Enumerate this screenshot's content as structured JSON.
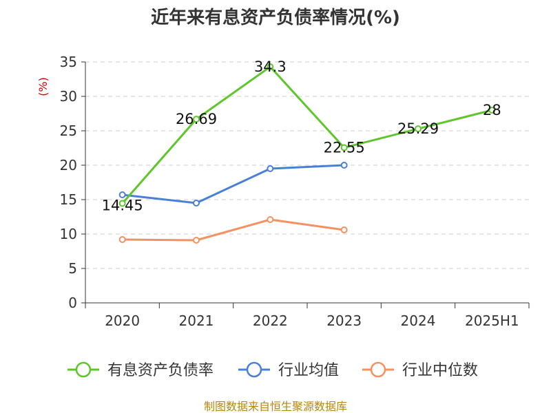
{
  "chart_data": {
    "type": "line",
    "title": "近年来有息资产负债率情况(%)",
    "ylabel": "(%)",
    "xlabel": "",
    "categories": [
      "2020",
      "2021",
      "2022",
      "2023",
      "2024",
      "2025H1"
    ],
    "ylim": [
      0,
      35
    ],
    "yticks": [
      0,
      5,
      10,
      15,
      20,
      25,
      30,
      35
    ],
    "grid": true,
    "legend_position": "bottom",
    "series": [
      {
        "name": "有息资产负债率",
        "color": "#5ec62b",
        "values": [
          14.45,
          26.69,
          34.3,
          22.55,
          25.29,
          28
        ],
        "labels": [
          "14.45",
          "26.69",
          "34.3",
          "22.55",
          "25.29",
          "28"
        ]
      },
      {
        "name": "行业均值",
        "color": "#4a7fd8",
        "values": [
          15.7,
          14.5,
          19.5,
          20.0,
          null,
          null
        ]
      },
      {
        "name": "行业中位数",
        "color": "#f29262",
        "values": [
          9.2,
          9.1,
          12.1,
          10.6,
          null,
          null
        ]
      }
    ]
  },
  "footer": {
    "source": "制图数据来自恒生聚源数据库"
  }
}
